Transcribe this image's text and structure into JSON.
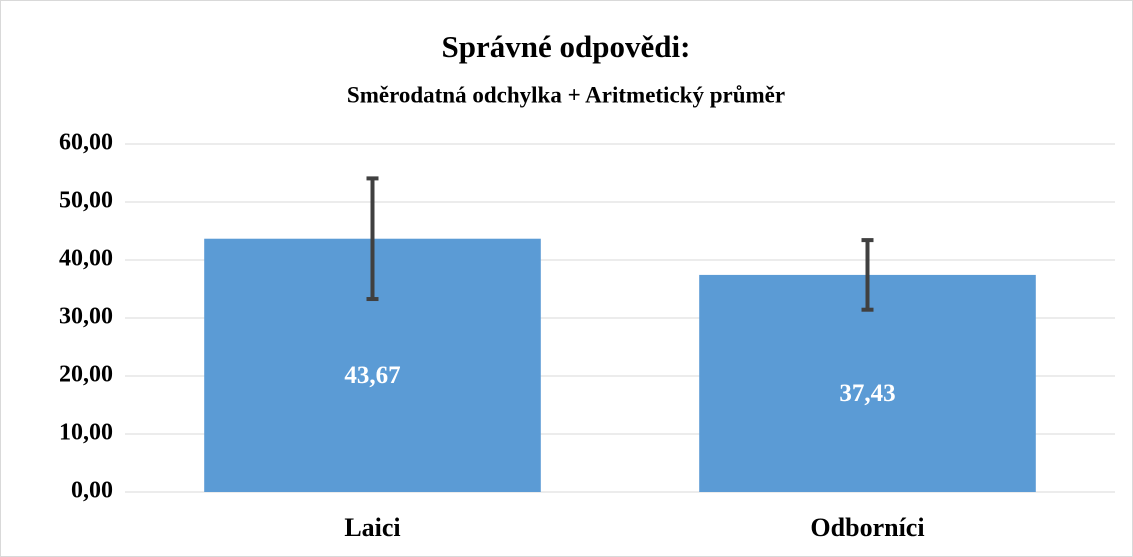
{
  "chart_data": {
    "type": "bar",
    "title": "Správné odpovědi:",
    "subtitle": "Směrodatná odchylka + Aritmetický průměr",
    "categories": [
      "Laici",
      "Odborníci"
    ],
    "values": [
      43.67,
      37.43
    ],
    "value_labels": [
      "43,67",
      "37,43"
    ],
    "errors": [
      10.4,
      6.0
    ],
    "color": "#5b9bd5",
    "error_color": "#404040",
    "ylim": [
      0,
      60
    ],
    "yticks": [
      {
        "value": 0,
        "label": "0,00"
      },
      {
        "value": 10,
        "label": "10,00"
      },
      {
        "value": 20,
        "label": "20,00"
      },
      {
        "value": 30,
        "label": "30,00"
      },
      {
        "value": 40,
        "label": "40,00"
      },
      {
        "value": 50,
        "label": "50,00"
      },
      {
        "value": 60,
        "label": "60,00"
      }
    ],
    "grid": true
  }
}
